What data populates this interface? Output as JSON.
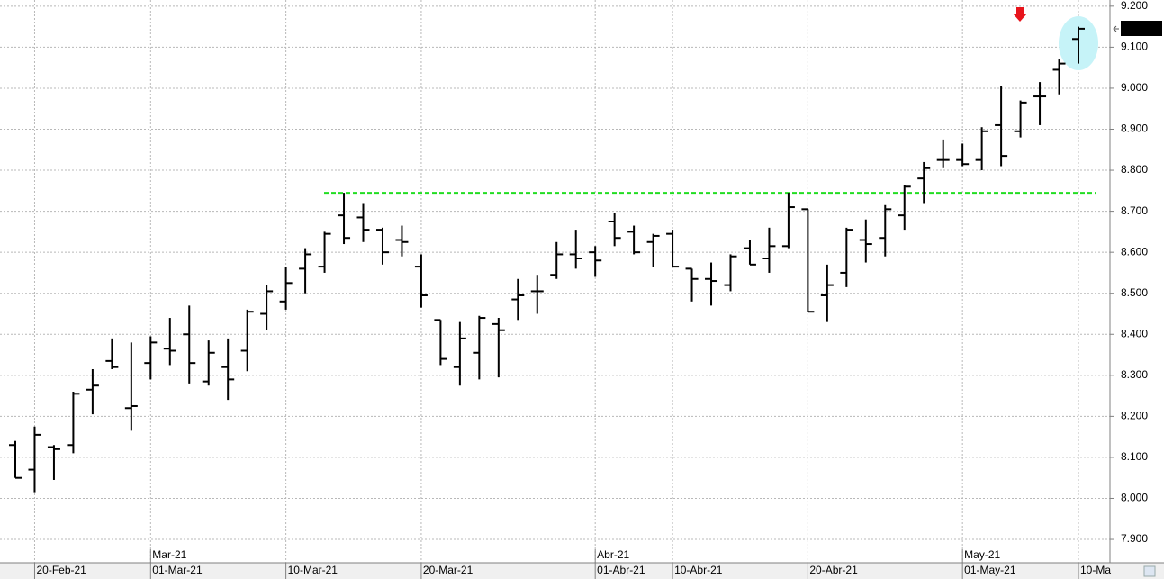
{
  "chart_data": {
    "type": "ohlc",
    "categories": [
      null,
      "20-Feb-21",
      null,
      null,
      null,
      null,
      null,
      "01-Mar-21",
      null,
      null,
      null,
      null,
      null,
      null,
      "10-Mar-21",
      null,
      null,
      null,
      null,
      null,
      null,
      "20-Mar-21",
      null,
      null,
      null,
      null,
      null,
      null,
      null,
      null,
      "01-Abr-21",
      null,
      null,
      null,
      "10-Abr-21",
      null,
      null,
      null,
      null,
      null,
      null,
      "20-Abr-21",
      null,
      null,
      null,
      null,
      null,
      null,
      null,
      "01-May-21",
      null,
      null,
      null,
      null,
      null,
      "10-Ma"
    ],
    "month_categories": [
      null,
      null,
      null,
      null,
      null,
      null,
      null,
      "Mar-21",
      null,
      null,
      null,
      null,
      null,
      null,
      null,
      null,
      null,
      null,
      null,
      null,
      null,
      null,
      null,
      null,
      null,
      null,
      null,
      null,
      null,
      null,
      "Abr-21",
      null,
      null,
      null,
      null,
      null,
      null,
      null,
      null,
      null,
      null,
      null,
      null,
      null,
      null,
      null,
      null,
      null,
      null,
      "May-21",
      null,
      null,
      null,
      null,
      null,
      null
    ],
    "series": [
      {
        "color": "#000000",
        "open": [
          8130,
          8070,
          8125,
          8130,
          8265,
          8335,
          8220,
          8330,
          8365,
          8400,
          8285,
          8320,
          8360,
          8450,
          8480,
          8560,
          8565,
          8690,
          8685,
          8655,
          8630,
          8565,
          8435,
          8320,
          8355,
          8425,
          8485,
          8505,
          8545,
          8595,
          8600,
          8675,
          8650,
          8625,
          8645,
          8560,
          8535,
          8520,
          8610,
          8585,
          8615,
          8705,
          8495,
          8550,
          8630,
          8635,
          8690,
          8780,
          8825,
          8825,
          8825,
          8910,
          8895,
          8980,
          9045,
          9120
        ],
        "high": [
          8140,
          8175,
          8130,
          8260,
          8315,
          8390,
          8380,
          8395,
          8440,
          8470,
          8385,
          8390,
          8460,
          8520,
          8565,
          8610,
          8650,
          8745,
          8720,
          8660,
          8665,
          8595,
          8435,
          8430,
          8445,
          8440,
          8535,
          8545,
          8625,
          8655,
          8615,
          8695,
          8665,
          8645,
          8655,
          8560,
          8575,
          8595,
          8630,
          8660,
          8745,
          8705,
          8570,
          8660,
          8680,
          8715,
          8765,
          8820,
          8875,
          8865,
          8905,
          9005,
          8970,
          9015,
          9070,
          9150
        ],
        "low": [
          8050,
          8015,
          8045,
          8110,
          8205,
          8315,
          8165,
          8290,
          8325,
          8280,
          8275,
          8240,
          8310,
          8410,
          8460,
          8500,
          8550,
          8620,
          8625,
          8570,
          8590,
          8465,
          8325,
          8275,
          8290,
          8295,
          8435,
          8450,
          8535,
          8560,
          8540,
          8615,
          8595,
          8565,
          8565,
          8480,
          8470,
          8505,
          8570,
          8550,
          8610,
          8455,
          8430,
          8515,
          8575,
          8590,
          8655,
          8720,
          8805,
          8810,
          8800,
          8810,
          8880,
          8910,
          8985,
          9060
        ],
        "close": [
          8050,
          8155,
          8120,
          8255,
          8275,
          8320,
          8225,
          8380,
          8360,
          8330,
          8355,
          8290,
          8455,
          8505,
          8525,
          8595,
          8645,
          8635,
          8655,
          8600,
          8625,
          8495,
          8340,
          8390,
          8440,
          8410,
          8495,
          8505,
          8595,
          8585,
          8580,
          8635,
          8600,
          8640,
          8565,
          8535,
          8530,
          8590,
          8570,
          8615,
          8710,
          8455,
          8520,
          8655,
          8620,
          8705,
          8760,
          8805,
          8825,
          8815,
          8895,
          8835,
          8965,
          8980,
          9060,
          9145
        ]
      }
    ],
    "horizontal_line": {
      "value": 8745,
      "color": "#22dd22"
    },
    "ylim": [
      7843,
      9215
    ],
    "yticks": [
      {
        "value": 7900,
        "label": "7.900"
      },
      {
        "value": 8000,
        "label": "8.000"
      },
      {
        "value": 8100,
        "label": "8.100"
      },
      {
        "value": 8200,
        "label": "8.200"
      },
      {
        "value": 8300,
        "label": "8.300"
      },
      {
        "value": 8400,
        "label": "8.400"
      },
      {
        "value": 8500,
        "label": "8.500"
      },
      {
        "value": 8600,
        "label": "8.600"
      },
      {
        "value": 8700,
        "label": "8.700"
      },
      {
        "value": 8800,
        "label": "8.800"
      },
      {
        "value": 8900,
        "label": "8.900"
      },
      {
        "value": 9000,
        "label": "9.000"
      },
      {
        "value": 9100,
        "label": "9.100"
      },
      {
        "value": 9200,
        "label": "9.200"
      }
    ],
    "grid": true
  }
}
